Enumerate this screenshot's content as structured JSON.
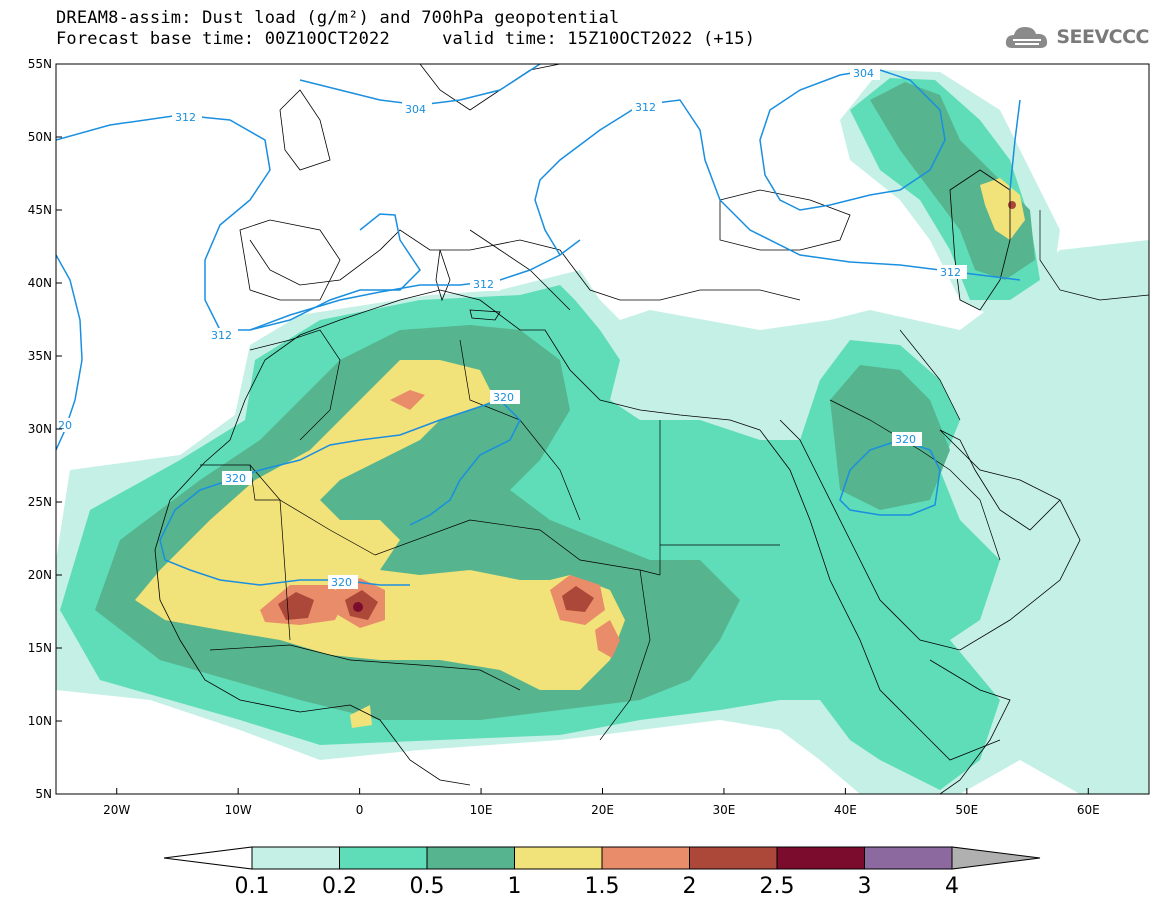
{
  "title": {
    "line1": "DREAM8-assim: Dust load (g/m²) and 700hPa geopotential",
    "line2": "Forecast base time: 00Z10OCT2022     valid time: 15Z10OCT2022 (+15)"
  },
  "logo": {
    "text": "SEEVCCC",
    "icon": "cloud-logo-icon"
  },
  "map": {
    "lon_range": [
      -25,
      65
    ],
    "lat_range": [
      5,
      55
    ],
    "lon_ticks": [
      "20W",
      "10W",
      "0",
      "10E",
      "20E",
      "30E",
      "40E",
      "50E",
      "60E"
    ],
    "lat_ticks": [
      "55N",
      "50N",
      "45N",
      "40N",
      "35N",
      "30N",
      "25N",
      "20N",
      "15N",
      "10N",
      "5N"
    ],
    "contour_labels": [
      "312",
      "304",
      "312",
      "304",
      "312",
      "312",
      "312",
      "320",
      "320",
      "320",
      "320",
      "20"
    ]
  },
  "colorbar": {
    "levels": [
      "0.1",
      "0.2",
      "0.5",
      "1",
      "1.5",
      "2",
      "2.5",
      "3",
      "4"
    ],
    "colors": [
      "#c4f0e6",
      "#5fddb9",
      "#56b48e",
      "#f2e27a",
      "#e98c6a",
      "#ab4839",
      "#7b0c2d",
      "#8c6aa0"
    ],
    "under_color": "#ffffff",
    "over_color": "#b0b0b0"
  },
  "colors": {
    "contour": "#1a8fe0",
    "background": "#ffffff"
  }
}
